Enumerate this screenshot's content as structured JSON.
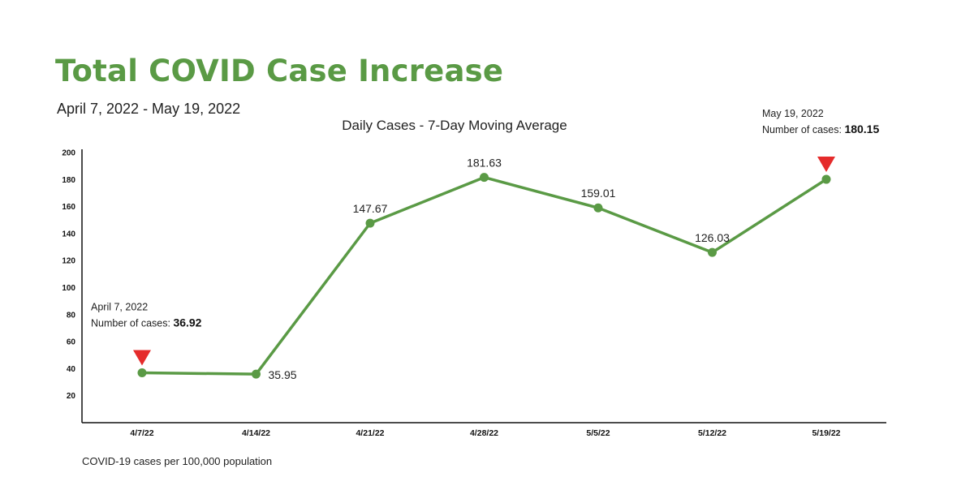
{
  "header": {
    "title": "Total COVID Case Increase",
    "date_range": "April 7, 2022 - May 19, 2022"
  },
  "footnote": "COVID-19 cases per 100,000 population",
  "colors": {
    "title": "#5a9a45",
    "line": "#5a9a45",
    "marker": "#e52b2b",
    "axis": "#111111"
  },
  "chart_data": {
    "type": "line",
    "title": "Daily Cases - 7-Day Moving Average",
    "xlabel": "",
    "ylabel": "",
    "categories": [
      "4/7/22",
      "4/14/22",
      "4/21/22",
      "4/28/22",
      "5/5/22",
      "5/12/22",
      "5/19/22"
    ],
    "series": [
      {
        "values": [
          36.92,
          35.95,
          147.67,
          181.63,
          159.01,
          126.03,
          180.15
        ]
      }
    ],
    "data_labels": [
      "",
      "35.95",
      "147.67",
      "181.63",
      "159.01",
      "126.03",
      ""
    ],
    "ylim": [
      0,
      200
    ],
    "yticks": [
      20,
      40,
      60,
      80,
      100,
      120,
      140,
      160,
      180,
      200
    ],
    "grid": false,
    "annotations": [
      {
        "index": 0,
        "date": "April 7, 2022",
        "label": "Number of cases:",
        "value": "36.92"
      },
      {
        "index": 6,
        "date": "May 19, 2022",
        "label": "Number of cases:",
        "value": "180.15"
      }
    ]
  }
}
